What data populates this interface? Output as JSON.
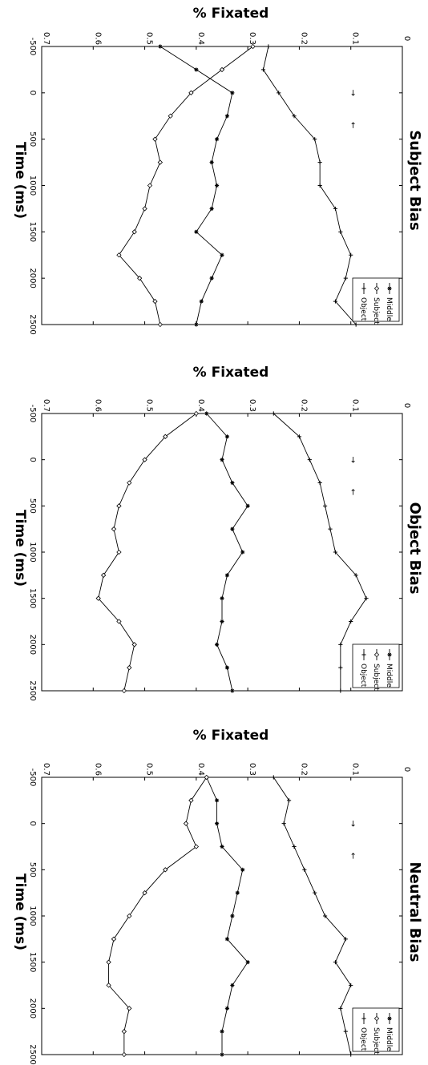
{
  "figure": {
    "panels": [
      {
        "title": "Subject Bias",
        "xlabel": "Time (ms)",
        "ylabel": "% Fixated",
        "legend": [
          "Middle",
          "Subject",
          "Object"
        ],
        "x_ticks": [
          "-500",
          "0",
          "500",
          "1000",
          "1500",
          "2000",
          "2500"
        ],
        "y_ticks": [
          "0",
          "0.1",
          "0.2",
          "0.3",
          "0.4",
          "0.5",
          "0.6",
          "0.7"
        ]
      },
      {
        "title": "Object Bias",
        "xlabel": "Time (ms)",
        "ylabel": "% Fixated",
        "legend": [
          "Middle",
          "Subject",
          "Object"
        ],
        "x_ticks": [
          "-500",
          "0",
          "500",
          "1000",
          "1500",
          "2000",
          "2500"
        ],
        "y_ticks": [
          "0",
          "0.1",
          "0.2",
          "0.3",
          "0.4",
          "0.5",
          "0.6",
          "0.7"
        ]
      },
      {
        "title": "Neutral Bias",
        "xlabel": "Time (ms)",
        "ylabel": "% Fixated",
        "legend": [
          "Middle",
          "Subject",
          "Object"
        ],
        "x_ticks": [
          "-500",
          "0",
          "500",
          "1000",
          "1500",
          "2000",
          "2500"
        ],
        "y_ticks": [
          "0",
          "0.1",
          "0.2",
          "0.3",
          "0.4",
          "0.5",
          "0.6",
          "0.7"
        ]
      }
    ]
  },
  "chart_data": [
    {
      "type": "line",
      "title": "Subject Bias",
      "xlabel": "Time (ms)",
      "ylabel": "% Fixated",
      "xlim": [
        -500,
        2500
      ],
      "ylim": [
        0,
        0.7
      ],
      "orientation": "rotated 90 degrees clockwise",
      "legend_position": "top-right",
      "x": [
        -500,
        -250,
        0,
        250,
        500,
        750,
        1000,
        1250,
        1500,
        1750,
        2000,
        2250,
        2500
      ],
      "series": [
        {
          "name": "Middle",
          "marker": "asterisk",
          "values": [
            0.47,
            0.4,
            0.33,
            0.34,
            0.36,
            0.37,
            0.36,
            0.37,
            0.4,
            0.35,
            0.37,
            0.39,
            0.4
          ]
        },
        {
          "name": "Subject",
          "marker": "diamond",
          "values": [
            0.29,
            0.35,
            0.41,
            0.45,
            0.48,
            0.47,
            0.49,
            0.5,
            0.52,
            0.55,
            0.51,
            0.48,
            0.47
          ]
        },
        {
          "name": "Object",
          "marker": "plus",
          "values": [
            0.26,
            0.27,
            0.24,
            0.21,
            0.17,
            0.16,
            0.16,
            0.13,
            0.12,
            0.1,
            0.11,
            0.13,
            0.09
          ]
        }
      ],
      "annotations": [
        {
          "x": 0,
          "y": 0.1,
          "text": "→"
        },
        {
          "x": 350,
          "y": 0.1,
          "text": "←"
        }
      ]
    },
    {
      "type": "line",
      "title": "Object Bias",
      "xlabel": "Time (ms)",
      "ylabel": "% Fixated",
      "xlim": [
        -500,
        2500
      ],
      "ylim": [
        0,
        0.7
      ],
      "orientation": "rotated 90 degrees clockwise",
      "legend_position": "top-right",
      "x": [
        -500,
        -250,
        0,
        250,
        500,
        750,
        1000,
        1250,
        1500,
        1750,
        2000,
        2250,
        2500
      ],
      "series": [
        {
          "name": "Middle",
          "marker": "asterisk",
          "values": [
            0.38,
            0.34,
            0.35,
            0.33,
            0.3,
            0.33,
            0.31,
            0.34,
            0.35,
            0.35,
            0.36,
            0.34,
            0.33
          ]
        },
        {
          "name": "Subject",
          "marker": "diamond",
          "values": [
            0.4,
            0.46,
            0.5,
            0.53,
            0.55,
            0.56,
            0.55,
            0.58,
            0.59,
            0.55,
            0.52,
            0.53,
            0.54
          ]
        },
        {
          "name": "Object",
          "marker": "plus",
          "values": [
            0.25,
            0.2,
            0.18,
            0.16,
            0.15,
            0.14,
            0.13,
            0.09,
            0.07,
            0.1,
            0.12,
            0.12,
            0.12
          ]
        }
      ],
      "annotations": [
        {
          "x": 0,
          "y": 0.1,
          "text": "→"
        },
        {
          "x": 350,
          "y": 0.1,
          "text": "←"
        }
      ]
    },
    {
      "type": "line",
      "title": "Neutral Bias",
      "xlabel": "Time (ms)",
      "ylabel": "% Fixated",
      "xlim": [
        -500,
        2500
      ],
      "ylim": [
        0,
        0.7
      ],
      "orientation": "rotated 90 degrees clockwise",
      "legend_position": "top-right",
      "x": [
        -500,
        -250,
        0,
        250,
        500,
        750,
        1000,
        1250,
        1500,
        1750,
        2000,
        2250,
        2500
      ],
      "series": [
        {
          "name": "Middle",
          "marker": "asterisk",
          "values": [
            0.38,
            0.36,
            0.36,
            0.35,
            0.31,
            0.32,
            0.33,
            0.34,
            0.3,
            0.33,
            0.34,
            0.35,
            0.35
          ]
        },
        {
          "name": "Subject",
          "marker": "diamond",
          "values": [
            0.38,
            0.41,
            0.42,
            0.4,
            0.46,
            0.5,
            0.53,
            0.56,
            0.57,
            0.57,
            0.53,
            0.54,
            0.54
          ]
        },
        {
          "name": "Object",
          "marker": "plus",
          "values": [
            0.25,
            0.22,
            0.23,
            0.21,
            0.19,
            0.17,
            0.15,
            0.11,
            0.13,
            0.1,
            0.12,
            0.11,
            0.1
          ]
        }
      ],
      "annotations": [
        {
          "x": 0,
          "y": 0.1,
          "text": "→"
        },
        {
          "x": 350,
          "y": 0.1,
          "text": "←"
        }
      ]
    }
  ]
}
